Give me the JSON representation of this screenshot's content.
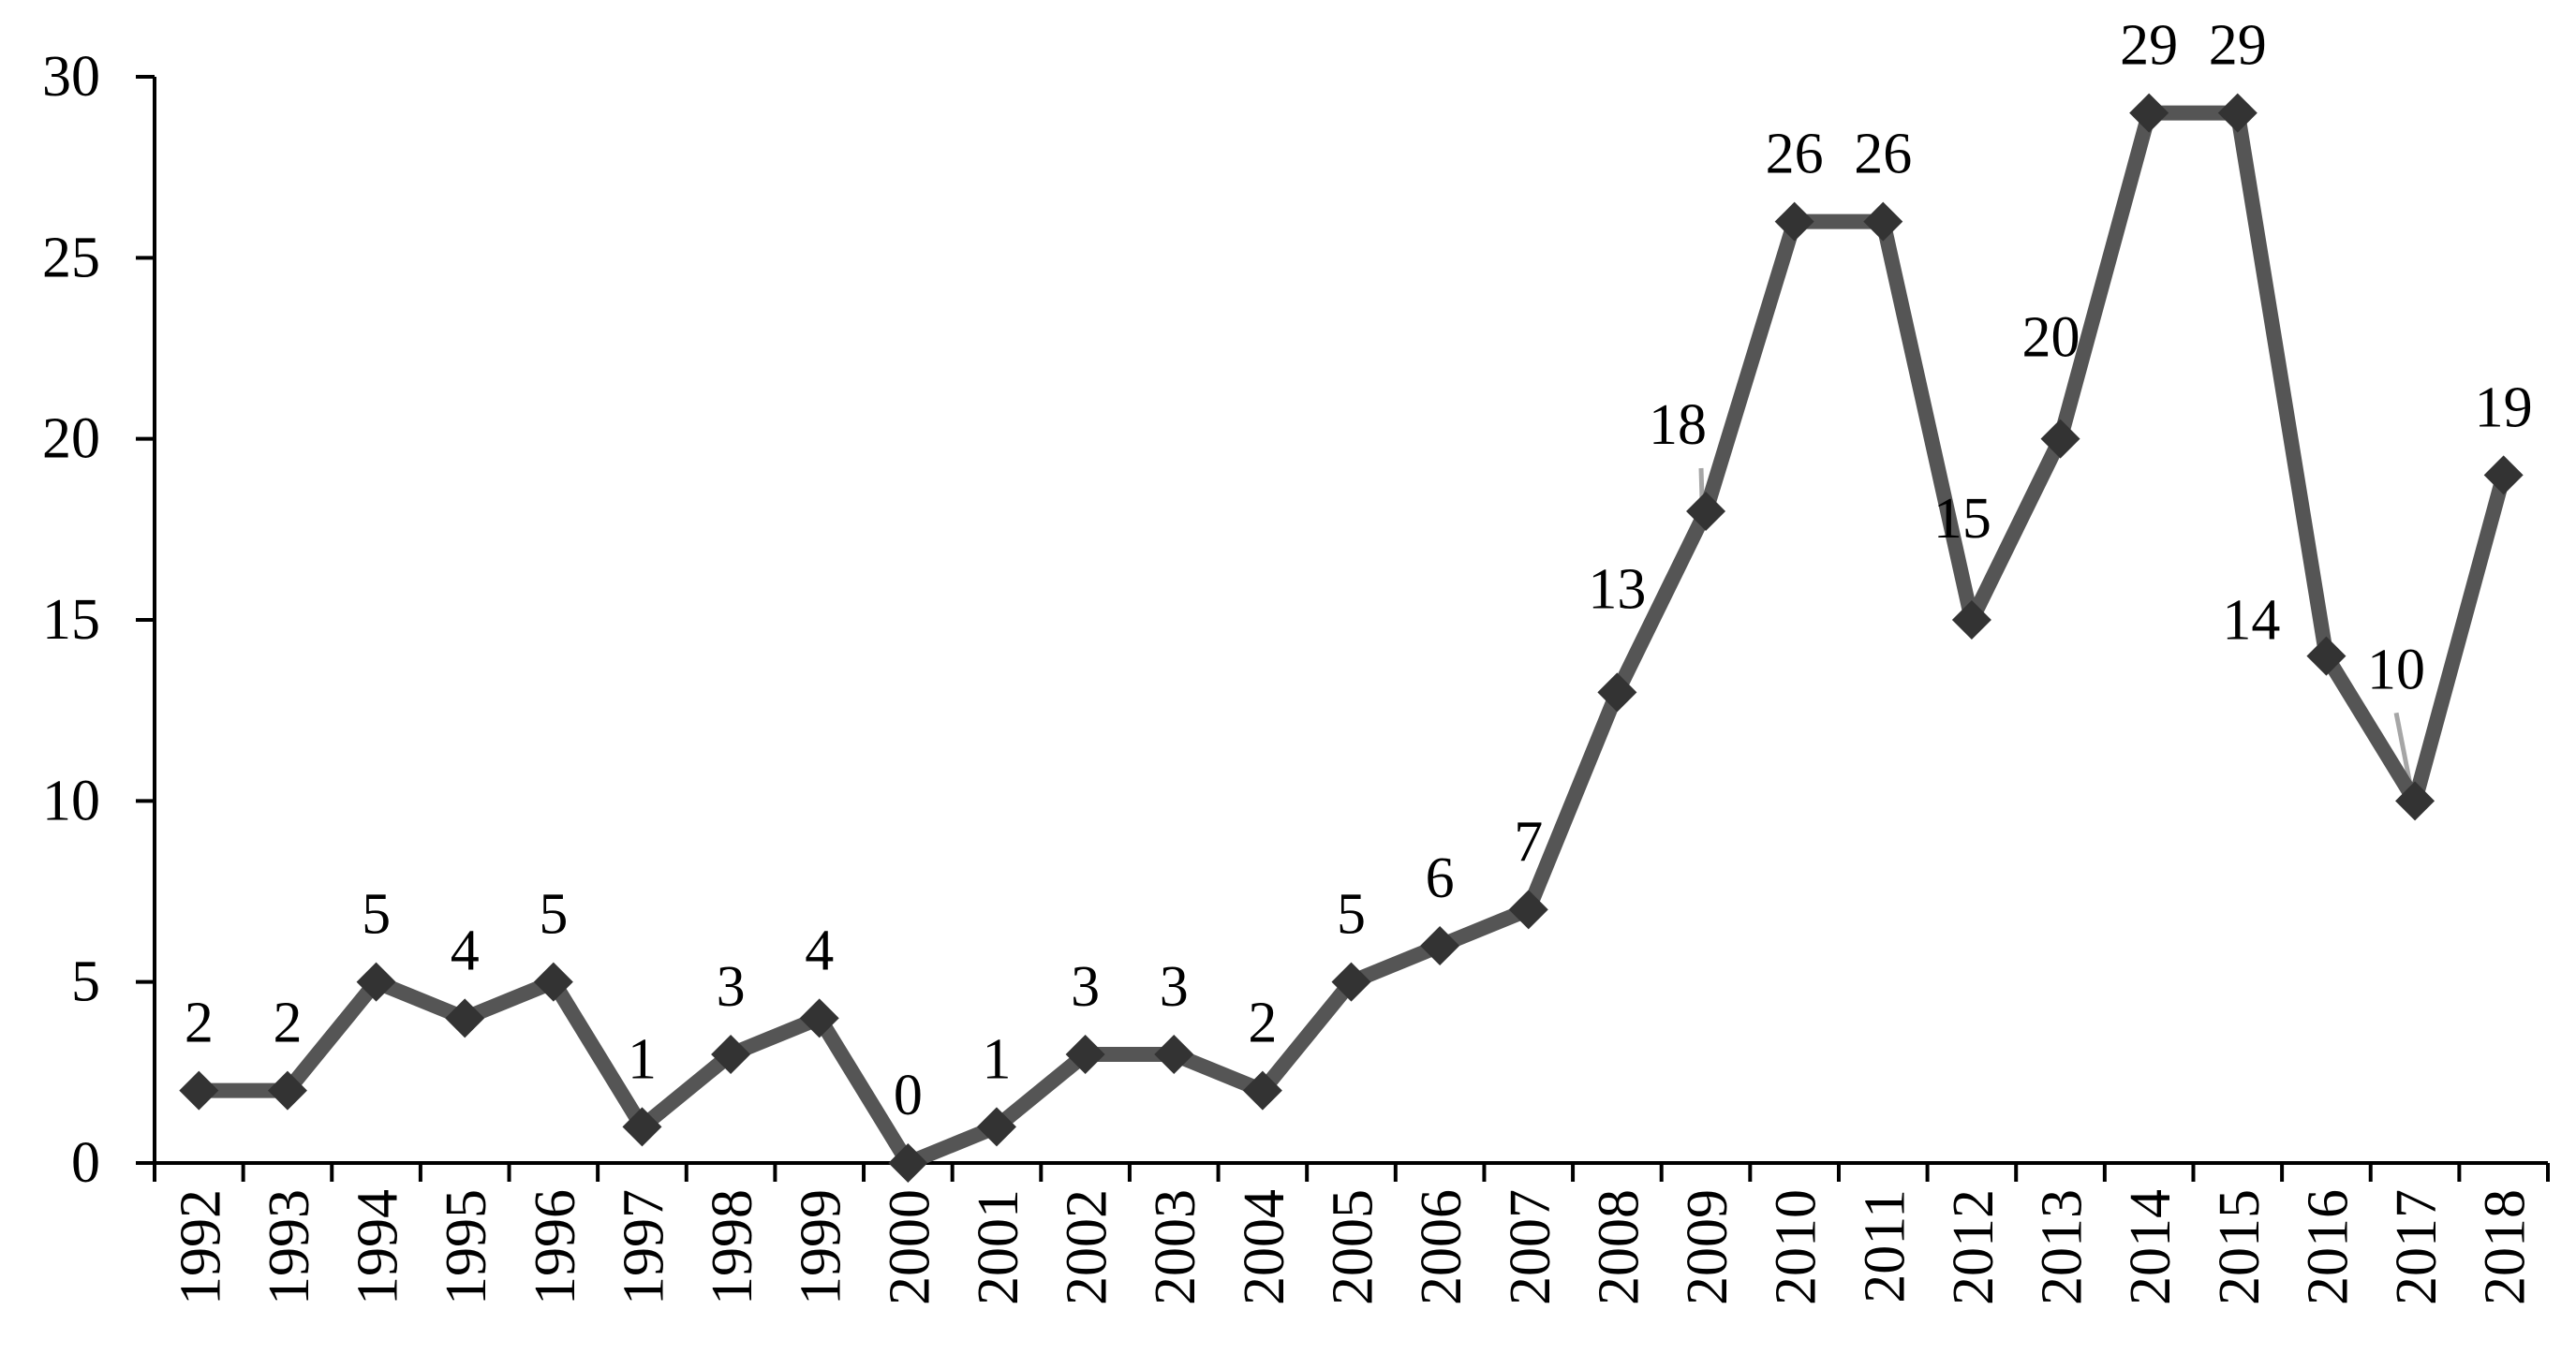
{
  "chart_data": {
    "type": "line",
    "title": "",
    "xlabel": "",
    "ylabel": "",
    "categories": [
      "1992",
      "1993",
      "1994",
      "1995",
      "1996",
      "1997",
      "1998",
      "1999",
      "2000",
      "2001",
      "2002",
      "2003",
      "2004",
      "2005",
      "2006",
      "2007",
      "2008",
      "2009",
      "2010",
      "2011",
      "2012",
      "2013",
      "2014",
      "2015",
      "2016",
      "2017",
      "2018"
    ],
    "series": [
      {
        "values": [
          2,
          2,
          5,
          4,
          5,
          1,
          3,
          4,
          0,
          1,
          3,
          3,
          2,
          5,
          6,
          7,
          13,
          18,
          26,
          26,
          15,
          20,
          29,
          29,
          14,
          10,
          19
        ]
      }
    ],
    "ylim": [
      0,
      30
    ],
    "yticks": [
      0,
      5,
      10,
      15,
      20,
      25,
      30
    ],
    "grid": false,
    "legend": "none",
    "data_labels": true,
    "marker": "diamond",
    "colors": {
      "line": "#555555",
      "marker": "#333333",
      "axis": "#000000",
      "leader_line": "#a6a6a6"
    }
  }
}
